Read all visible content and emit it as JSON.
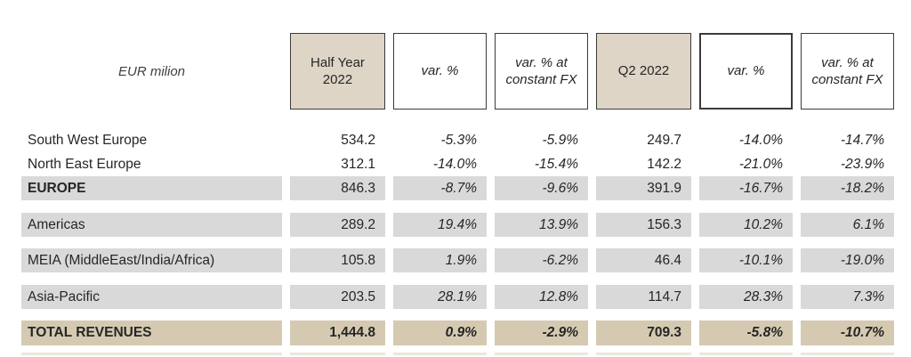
{
  "unit_label": "EUR milion",
  "header": {
    "columns": [
      {
        "label": "Half Year\n2022"
      },
      {
        "label": "var. %"
      },
      {
        "label": "var. % at\nconstant FX"
      },
      {
        "label": "Q2 2022"
      },
      {
        "label": "var. %"
      },
      {
        "label": "var. % at\nconstant FX"
      }
    ]
  },
  "rows": [
    {
      "label": "South West Europe",
      "values": [
        "534.2",
        "-5.3%",
        "-5.9%",
        "249.7",
        "-14.0%",
        "-14.7%"
      ]
    },
    {
      "label": "North East Europe",
      "values": [
        "312.1",
        "-14.0%",
        "-15.4%",
        "142.2",
        "-21.0%",
        "-23.9%"
      ]
    },
    {
      "label": "EUROPE",
      "values": [
        "846.3",
        "-8.7%",
        "-9.6%",
        "391.9",
        "-16.7%",
        "-18.2%"
      ]
    },
    {
      "label": "Americas",
      "values": [
        "289.2",
        "19.4%",
        "13.9%",
        "156.3",
        "10.2%",
        "6.1%"
      ]
    },
    {
      "label": "MEIA (MiddleEast/India/Africa)",
      "values": [
        "105.8",
        "1.9%",
        "-6.2%",
        "46.4",
        "-10.1%",
        "-19.0%"
      ]
    },
    {
      "label": "Asia-Pacific",
      "values": [
        "203.5",
        "28.1%",
        "12.8%",
        "114.7",
        "28.3%",
        "7.3%"
      ]
    },
    {
      "label": "TOTAL REVENUES",
      "values": [
        "1,444.8",
        "0.9%",
        "-2.9%",
        "709.3",
        "-5.8%",
        "-10.7%"
      ]
    }
  ],
  "colors": {
    "tan_header": "#ded5c6",
    "tan_total": "#d5cab1",
    "gray_band": "#d9d9d9",
    "border_dark": "#3b3b3b",
    "text": "#262626",
    "total_shadow": "#ece7db"
  }
}
